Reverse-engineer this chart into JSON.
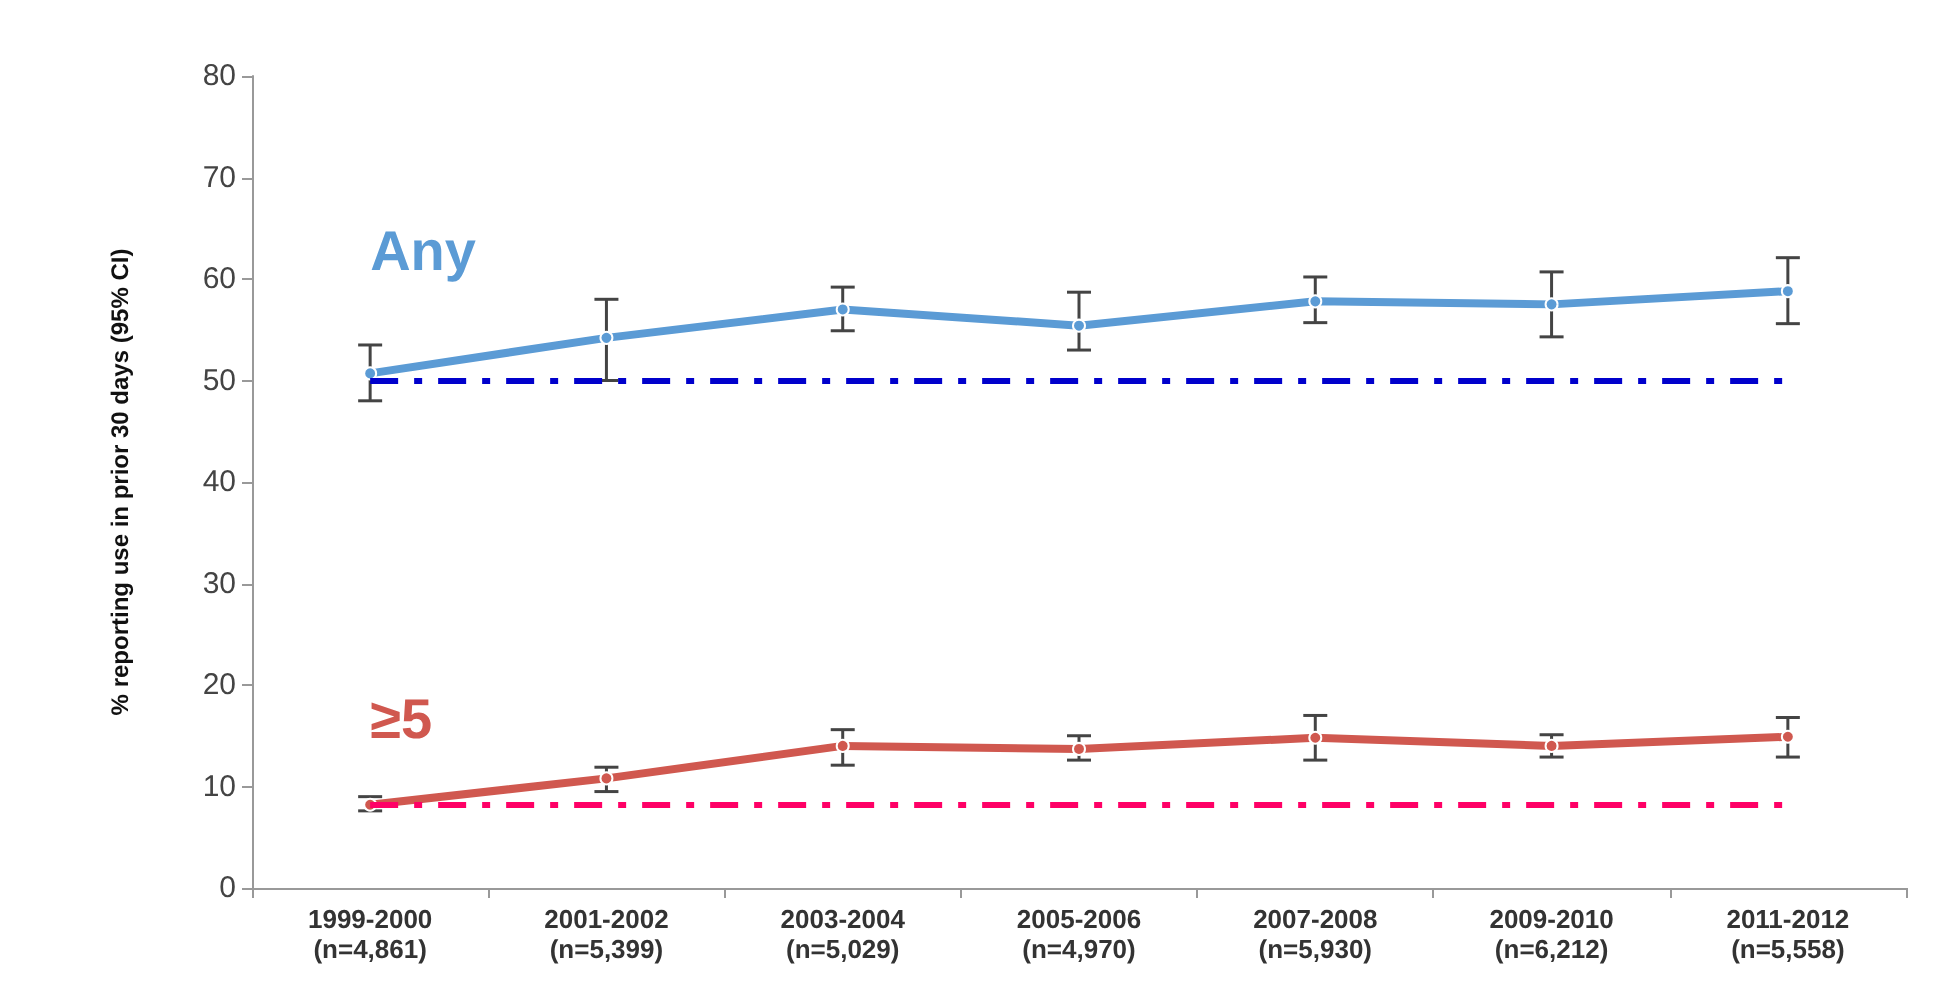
{
  "chart_data": {
    "type": "line",
    "ylabel": "% reporting use in prior 30 days (95% CI)",
    "categories": [
      "1999-2000\n(n=4,861)",
      "2001-2002\n(n=5,399)",
      "2003-2004\n(n=5,029)",
      "2005-2006\n(n=4,970)",
      "2007-2008\n(n=5,930)",
      "2009-2010\n(n=6,212)",
      "2011-2012\n(n=5,558)"
    ],
    "series": [
      {
        "name": "Any",
        "color": "#5b9bd5",
        "values": [
          50.7,
          54.2,
          57.0,
          55.4,
          57.8,
          57.5,
          58.8
        ],
        "errors": [
          [
            48.0,
            53.5
          ],
          [
            50.0,
            58.0
          ],
          [
            54.9,
            59.2
          ],
          [
            53.0,
            58.7
          ],
          [
            55.7,
            60.2
          ],
          [
            54.3,
            60.7
          ],
          [
            55.6,
            62.1
          ]
        ]
      },
      {
        "name": "≥5",
        "color": "#d0584f",
        "values": [
          8.2,
          10.8,
          14.0,
          13.7,
          14.8,
          14.0,
          14.9
        ],
        "errors": [
          [
            7.6,
            9.0
          ],
          [
            9.5,
            11.9
          ],
          [
            12.1,
            15.6
          ],
          [
            12.6,
            15.0
          ],
          [
            12.6,
            17.0
          ],
          [
            12.9,
            15.1
          ],
          [
            12.9,
            16.8
          ]
        ]
      }
    ],
    "ylim": [
      0,
      80
    ],
    "yticks": [
      0,
      10,
      20,
      30,
      40,
      50,
      60,
      70,
      80
    ],
    "grid": false,
    "legend": false,
    "marker": "circle",
    "line_style": "solid",
    "ref_lines": [
      {
        "axis": "y",
        "value": 50,
        "color": "#0000cc",
        "line_style": "dashed"
      },
      {
        "axis": "y",
        "value": 8.2,
        "color": "#ff0066",
        "line_style": "dashed"
      }
    ]
  }
}
